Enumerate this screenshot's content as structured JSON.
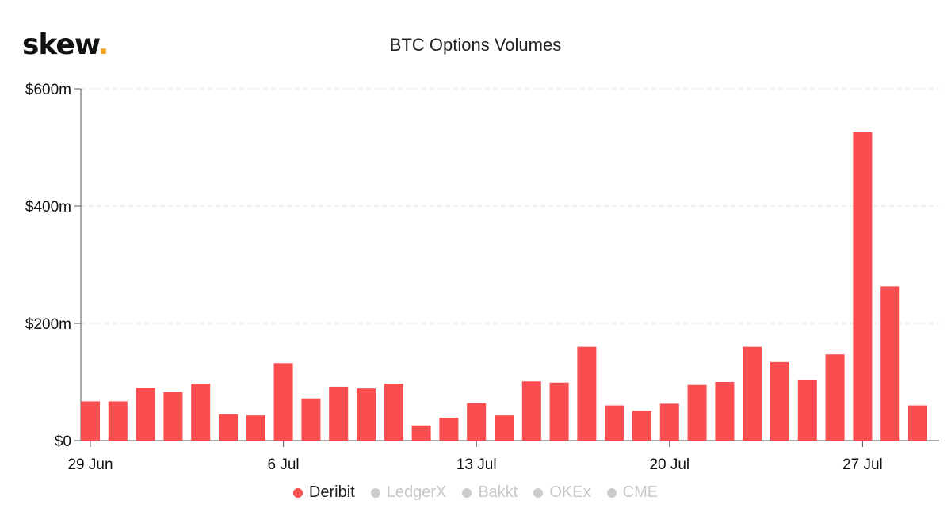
{
  "logo": {
    "text": "skew",
    "dot": "."
  },
  "chart_data": {
    "type": "bar",
    "title": "BTC Options Volumes",
    "xlabel": "",
    "ylabel": "",
    "ylim": [
      0,
      600
    ],
    "y_ticks": [
      "$0",
      "$200m",
      "$400m",
      "$600m"
    ],
    "y_tick_values": [
      0,
      200,
      400,
      600
    ],
    "x_ticks": [
      {
        "label": "29 Jun",
        "index": 0
      },
      {
        "label": "6 Jul",
        "index": 7
      },
      {
        "label": "13 Jul",
        "index": 14
      },
      {
        "label": "20 Jul",
        "index": 21
      },
      {
        "label": "27 Jul",
        "index": 28
      }
    ],
    "categories": [
      "29 Jun",
      "30 Jun",
      "1 Jul",
      "2 Jul",
      "3 Jul",
      "4 Jul",
      "5 Jul",
      "6 Jul",
      "7 Jul",
      "8 Jul",
      "9 Jul",
      "10 Jul",
      "11 Jul",
      "12 Jul",
      "13 Jul",
      "14 Jul",
      "15 Jul",
      "16 Jul",
      "17 Jul",
      "18 Jul",
      "19 Jul",
      "20 Jul",
      "21 Jul",
      "22 Jul",
      "23 Jul",
      "24 Jul",
      "25 Jul",
      "26 Jul",
      "27 Jul",
      "28 Jul",
      "29 Jul"
    ],
    "series": [
      {
        "name": "Deribit",
        "color": "#f94d4f",
        "values": [
          67,
          67,
          90,
          83,
          97,
          45,
          43,
          132,
          72,
          92,
          89,
          97,
          26,
          39,
          64,
          43,
          101,
          99,
          160,
          60,
          51,
          63,
          95,
          100,
          160,
          134,
          103,
          147,
          526,
          263,
          60
        ]
      }
    ],
    "legend": [
      {
        "name": "Deribit",
        "active": true,
        "color": "#f94d4f"
      },
      {
        "name": "LedgerX",
        "active": false,
        "color": "#cccccc"
      },
      {
        "name": "Bakkt",
        "active": false,
        "color": "#cccccc"
      },
      {
        "name": "OKEx",
        "active": false,
        "color": "#cccccc"
      },
      {
        "name": "CME",
        "active": false,
        "color": "#cccccc"
      }
    ],
    "grid": true,
    "legend_position": "bottom"
  }
}
